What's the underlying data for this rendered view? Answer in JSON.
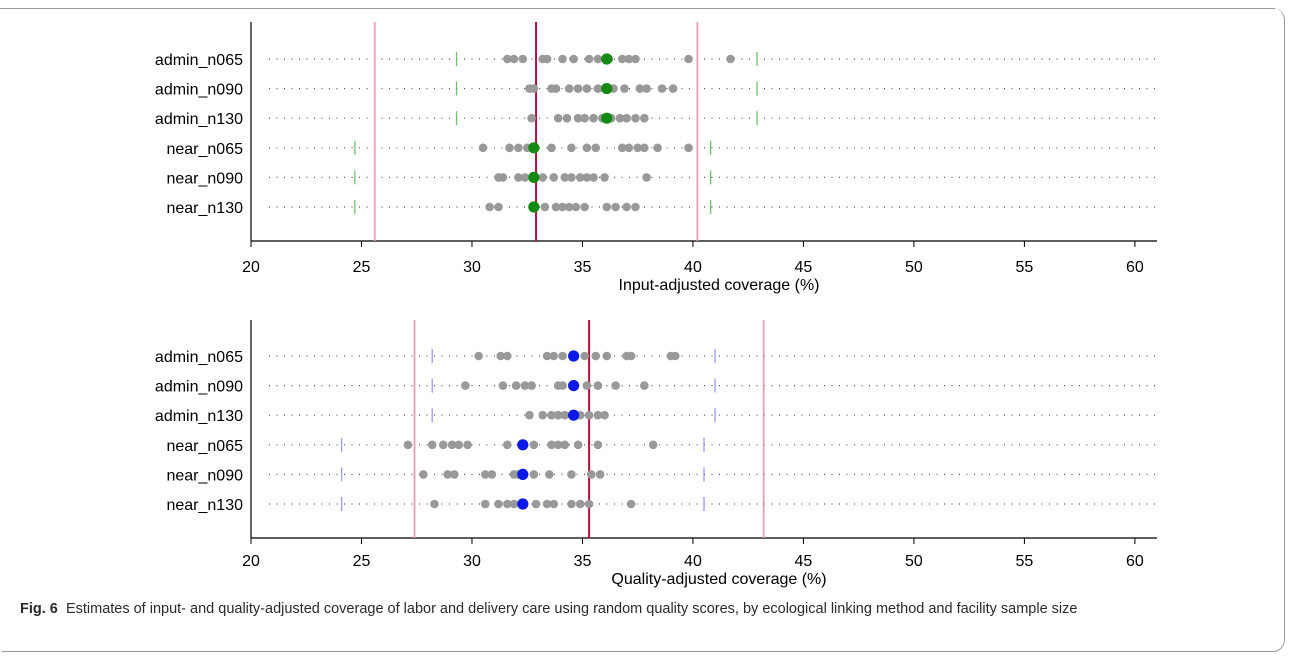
{
  "caption": {
    "label": "Fig. 6",
    "text": "Estimates of input- and quality-adjusted coverage of labor and delivery care using random quality scores, by ecological linking method and facility sample size"
  },
  "chart_data": [
    {
      "type": "scatter",
      "xlabel": "Input-adjusted coverage (%)",
      "xlim": [
        20,
        61
      ],
      "xticks": [
        20,
        25,
        30,
        35,
        40,
        45,
        50,
        55,
        60
      ],
      "categories": [
        "admin_n065",
        "admin_n090",
        "admin_n130",
        "near_n065",
        "near_n090",
        "near_n130"
      ],
      "estimate_color": "#138a13",
      "interval_color": "#6fc16f",
      "reference_lines": {
        "center": 32.9,
        "lower": 25.6,
        "upper": 40.2,
        "center_color": "#b0103a",
        "bound_color": "#eaa0b4"
      },
      "series": [
        {
          "category": "admin_n065",
          "estimate": 36.1,
          "interval": [
            29.3,
            42.9
          ],
          "draws": [
            31.6,
            31.9,
            32.3,
            33.2,
            33.4,
            34.1,
            34.6,
            35.3,
            35.7,
            36.2,
            36.8,
            37.1,
            37.4,
            39.8,
            41.7
          ]
        },
        {
          "category": "admin_n090",
          "estimate": 36.1,
          "interval": [
            29.3,
            42.9
          ],
          "draws": [
            32.6,
            32.8,
            33.6,
            33.8,
            34.4,
            34.8,
            35.2,
            35.7,
            36.0,
            36.4,
            36.9,
            37.6,
            37.9,
            38.6,
            39.1
          ]
        },
        {
          "category": "admin_n130",
          "estimate": 36.1,
          "interval": [
            29.3,
            42.9
          ],
          "draws": [
            32.7,
            33.9,
            34.3,
            34.8,
            35.1,
            35.5,
            35.9,
            36.3,
            36.7,
            37.0,
            37.4,
            37.8
          ]
        },
        {
          "category": "near_n065",
          "estimate": 32.8,
          "interval": [
            24.7,
            40.8
          ],
          "draws": [
            30.5,
            31.7,
            32.1,
            32.5,
            33.6,
            34.5,
            35.2,
            35.6,
            36.8,
            37.1,
            37.5,
            37.8,
            38.4,
            39.8
          ]
        },
        {
          "category": "near_n090",
          "estimate": 32.8,
          "interval": [
            24.7,
            40.8
          ],
          "draws": [
            31.2,
            31.4,
            32.1,
            32.4,
            33.2,
            33.7,
            34.2,
            34.5,
            34.9,
            35.2,
            35.5,
            36.0,
            37.9
          ]
        },
        {
          "category": "near_n130",
          "estimate": 32.8,
          "interval": [
            24.7,
            40.8
          ],
          "draws": [
            30.8,
            31.2,
            33.3,
            33.8,
            34.1,
            34.4,
            34.7,
            35.1,
            36.1,
            36.5,
            37.0,
            37.4
          ]
        }
      ]
    },
    {
      "type": "scatter",
      "xlabel": "Quality-adjusted coverage (%)",
      "xlim": [
        20,
        61
      ],
      "xticks": [
        20,
        25,
        30,
        35,
        40,
        45,
        50,
        55,
        60
      ],
      "categories": [
        "admin_n065",
        "admin_n090",
        "admin_n130",
        "near_n065",
        "near_n090",
        "near_n130"
      ],
      "estimate_color": "#0a18e8",
      "interval_color": "#9a9cf0",
      "reference_lines": {
        "center": 35.3,
        "lower": 27.4,
        "upper": 43.2,
        "center_color": "#b0103a",
        "bound_color": "#eaa0b4"
      },
      "series": [
        {
          "category": "admin_n065",
          "estimate": 34.6,
          "interval": [
            28.2,
            41.0
          ],
          "draws": [
            30.3,
            31.3,
            31.6,
            33.4,
            33.7,
            34.1,
            35.1,
            35.6,
            36.1,
            37.0,
            37.2,
            39.0,
            39.2
          ]
        },
        {
          "category": "admin_n090",
          "estimate": 34.6,
          "interval": [
            28.2,
            41.0
          ],
          "draws": [
            29.7,
            31.4,
            32.0,
            32.4,
            32.7,
            33.9,
            34.1,
            35.2,
            35.7,
            36.5,
            37.8
          ]
        },
        {
          "category": "admin_n130",
          "estimate": 34.6,
          "interval": [
            28.2,
            41.0
          ],
          "draws": [
            32.6,
            33.2,
            33.6,
            33.9,
            34.2,
            34.9,
            35.3,
            35.7,
            36.0
          ]
        },
        {
          "category": "near_n065",
          "estimate": 32.3,
          "interval": [
            24.1,
            40.5
          ],
          "draws": [
            27.1,
            28.2,
            28.7,
            29.1,
            29.4,
            29.8,
            31.6,
            32.8,
            33.6,
            33.9,
            34.2,
            34.8,
            35.7,
            38.2
          ]
        },
        {
          "category": "near_n090",
          "estimate": 32.3,
          "interval": [
            24.1,
            40.5
          ],
          "draws": [
            27.8,
            28.9,
            29.2,
            30.6,
            30.9,
            31.9,
            32.1,
            32.8,
            33.5,
            34.5,
            35.4,
            35.8
          ]
        },
        {
          "category": "near_n130",
          "estimate": 32.3,
          "interval": [
            24.1,
            40.5
          ],
          "draws": [
            28.3,
            30.6,
            31.2,
            31.6,
            31.9,
            32.9,
            33.4,
            33.7,
            34.5,
            34.9,
            35.3,
            37.2
          ]
        }
      ]
    }
  ]
}
